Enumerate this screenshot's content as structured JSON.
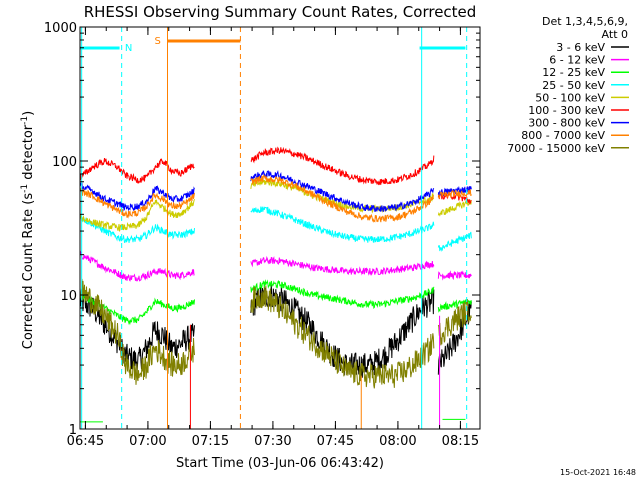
{
  "chart_data": {
    "type": "line",
    "title": "RHESSI Observing Summary Count Rates, Corrected",
    "xlabel": "Start Time (03-Jun-06 06:43:42)",
    "ylabel_main": "Corrected Count Rate (s",
    "ylabel_sup1": "-1",
    "ylabel_mid": " detector",
    "ylabel_sup2": "-1",
    "ylabel_end": ")",
    "yscale": "log",
    "ylim": [
      1,
      1000
    ],
    "xlim_minutes": [
      0,
      96
    ],
    "x_tick_labels": [
      "06:45",
      "07:00",
      "07:15",
      "07:30",
      "07:45",
      "08:00",
      "08:15"
    ],
    "x_tick_minutes": [
      1.3,
      16.3,
      31.3,
      46.3,
      61.3,
      76.3,
      91.3
    ],
    "y_tick_labels": [
      "1",
      "10",
      "100",
      "1000"
    ],
    "y_tick_values": [
      1,
      10,
      100,
      1000
    ],
    "legend_position": "right",
    "legend_header": [
      "Det 1,3,4,5,6,9,",
      "Att 0"
    ],
    "markers": {
      "night": "N",
      "saa": "S"
    },
    "footer_date": "15-Oct-2021 16:48",
    "series": [
      {
        "name": "3 - 6 keV",
        "color": "#000000",
        "segments": [
          {
            "x": [
              0,
              3,
              6,
              9,
              11,
              14,
              16,
              18,
              20,
              22,
              24,
              26,
              27.5
            ],
            "y": [
              9,
              8,
              6,
              4.5,
              3.5,
              3.2,
              4,
              5.5,
              5,
              4,
              4.3,
              4.8,
              5
            ]
          },
          {
            "x": [
              41,
              43,
              46,
              49,
              52,
              55,
              58,
              61,
              64,
              67,
              70,
              73,
              76,
              79,
              82,
              85
            ],
            "y": [
              8,
              9.5,
              10,
              9,
              7.5,
              6,
              4.5,
              3.5,
              3,
              3,
              3,
              3.5,
              4.5,
              6,
              8,
              9
            ]
          },
          {
            "x": [
              86,
              88,
              90,
              92,
              94
            ],
            "y": [
              3,
              3.5,
              4.5,
              6,
              8
            ]
          }
        ]
      },
      {
        "name": "6 - 12 keV",
        "color": "#ff00ff",
        "segments": [
          {
            "x": [
              0,
              3,
              6,
              9,
              11,
              14,
              16,
              18,
              20,
              22,
              24,
              26,
              27.5
            ],
            "y": [
              20,
              18,
              16,
              14.5,
              13.5,
              13.5,
              14,
              15,
              15,
              14,
              14,
              14.5,
              15
            ]
          },
          {
            "x": [
              41,
              44,
              48,
              52,
              56,
              60,
              64,
              68,
              72,
              76,
              80,
              84,
              85
            ],
            "y": [
              17,
              18,
              18,
              17,
              16,
              15.5,
              15,
              15,
              15,
              15.5,
              16,
              17,
              17
            ]
          },
          {
            "x": [
              86,
              90,
              94
            ],
            "y": [
              14,
              14,
              14
            ]
          }
        ]
      },
      {
        "name": "12 - 25 keV",
        "color": "#00ff00",
        "segments": [
          {
            "x": [
              0,
              3,
              6,
              9,
              11,
              14,
              16,
              18,
              20,
              22,
              24,
              26,
              27.5
            ],
            "y": [
              10,
              9,
              8,
              7,
              6.5,
              6.5,
              7.5,
              9,
              8.5,
              8,
              8,
              8.5,
              9
            ]
          },
          {
            "x": [
              41,
              44,
              48,
              52,
              56,
              60,
              64,
              68,
              72,
              76,
              80,
              84,
              85
            ],
            "y": [
              11,
              12,
              12,
              11,
              10,
              9.5,
              9,
              8.5,
              8.5,
              9,
              9.5,
              10.5,
              11
            ]
          },
          {
            "x": [
              86,
              90,
              94
            ],
            "y": [
              8,
              8.5,
              9
            ]
          }
        ]
      },
      {
        "name": "25 - 50 keV",
        "color": "#00ffff",
        "segments": [
          {
            "x": [
              0,
              3,
              6,
              9,
              11,
              14,
              16,
              18,
              20,
              22,
              24,
              26,
              27.5
            ],
            "y": [
              38,
              34,
              30,
              27,
              26,
              26,
              28,
              32,
              30,
              28,
              28,
              29,
              30
            ]
          },
          {
            "x": [
              41,
              44,
              48,
              52,
              56,
              60,
              64,
              68,
              72,
              76,
              80,
              84,
              85
            ],
            "y": [
              42,
              44,
              40,
              36,
              32,
              29,
              27,
              26,
              26,
              27,
              29,
              32,
              34
            ]
          },
          {
            "x": [
              86,
              90,
              94
            ],
            "y": [
              22,
              25,
              28
            ]
          }
        ]
      },
      {
        "name": "50 - 100 keV",
        "color": "#cccc00",
        "segments": [
          {
            "x": [
              0,
              3,
              6,
              9,
              11,
              14,
              16,
              18,
              20,
              22,
              24,
              26,
              27.5
            ],
            "y": [
              38,
              35,
              33,
              32,
              32,
              33,
              38,
              50,
              45,
              40,
              40,
              45,
              50
            ]
          },
          {
            "x": [
              41,
              44,
              48,
              52,
              56,
              60,
              64,
              68,
              72,
              76,
              80,
              84,
              85
            ],
            "y": [
              65,
              70,
              68,
              62,
              55,
              50,
              46,
              44,
              44,
              45,
              48,
              52,
              55
            ]
          },
          {
            "x": [
              86,
              90,
              94
            ],
            "y": [
              40,
              45,
              50
            ]
          }
        ]
      },
      {
        "name": "100 - 300 keV",
        "color": "#ff0000",
        "segments": [
          {
            "x": [
              0,
              3,
              6,
              9,
              11,
              14,
              16,
              18,
              20,
              22,
              24,
              26,
              27.5
            ],
            "y": [
              75,
              90,
              100,
              90,
              78,
              72,
              75,
              90,
              100,
              85,
              80,
              88,
              95
            ]
          },
          {
            "x": [
              41,
              44,
              48,
              52,
              56,
              60,
              64,
              68,
              72,
              76,
              80,
              84,
              85
            ],
            "y": [
              100,
              115,
              120,
              112,
              100,
              88,
              78,
              72,
              70,
              72,
              80,
              95,
              105
            ]
          },
          {
            "x": [
              86,
              90,
              94
            ],
            "y": [
              55,
              55,
              50
            ]
          }
        ]
      },
      {
        "name": "300 - 800 keV",
        "color": "#0000ff",
        "segments": [
          {
            "x": [
              0,
              3,
              6,
              9,
              11,
              14,
              16,
              18,
              20,
              22,
              24,
              26,
              27.5
            ],
            "y": [
              65,
              60,
              52,
              48,
              45,
              46,
              50,
              62,
              58,
              52,
              52,
              56,
              60
            ]
          },
          {
            "x": [
              41,
              44,
              48,
              52,
              56,
              60,
              64,
              68,
              72,
              76,
              80,
              84,
              85
            ],
            "y": [
              75,
              80,
              78,
              70,
              62,
              55,
              49,
              45,
              44,
              45,
              49,
              57,
              63
            ]
          },
          {
            "x": [
              86,
              90,
              94
            ],
            "y": [
              58,
              60,
              62
            ]
          }
        ]
      },
      {
        "name": "800 - 7000 keV",
        "color": "#ff8000",
        "segments": [
          {
            "x": [
              0,
              3,
              6,
              9,
              11,
              14,
              16,
              18,
              20,
              22,
              24,
              26,
              27.5
            ],
            "y": [
              60,
              55,
              48,
              43,
              40,
              41,
              46,
              56,
              52,
              46,
              46,
              50,
              55
            ]
          },
          {
            "x": [
              41,
              44,
              48,
              52,
              56,
              60,
              64,
              68,
              72,
              76,
              80,
              84,
              85
            ],
            "y": [
              70,
              74,
              72,
              65,
              56,
              48,
              42,
              38,
              37,
              38,
              42,
              50,
              55
            ]
          },
          {
            "x": [
              86,
              90,
              94
            ],
            "y": [
              55,
              57,
              58
            ]
          }
        ]
      },
      {
        "name": "7000 - 15000 keV",
        "color": "#808000",
        "segments": [
          {
            "x": [
              0,
              3,
              6,
              9,
              11,
              14,
              16,
              18,
              20,
              22,
              24,
              26,
              27.5
            ],
            "y": [
              11,
              9,
              7,
              5,
              3,
              2.5,
              3,
              4,
              3.5,
              3,
              3,
              3.5,
              4
            ]
          },
          {
            "x": [
              41,
              44,
              48,
              52,
              56,
              60,
              64,
              68,
              72,
              76,
              80,
              84,
              85
            ],
            "y": [
              9,
              10,
              8,
              6,
              4.5,
              3.5,
              2.7,
              2.5,
              2.5,
              2.5,
              3,
              4,
              5
            ]
          },
          {
            "x": [
              86,
              90,
              94
            ],
            "y": [
              5,
              6.5,
              8
            ]
          }
        ]
      }
    ]
  }
}
